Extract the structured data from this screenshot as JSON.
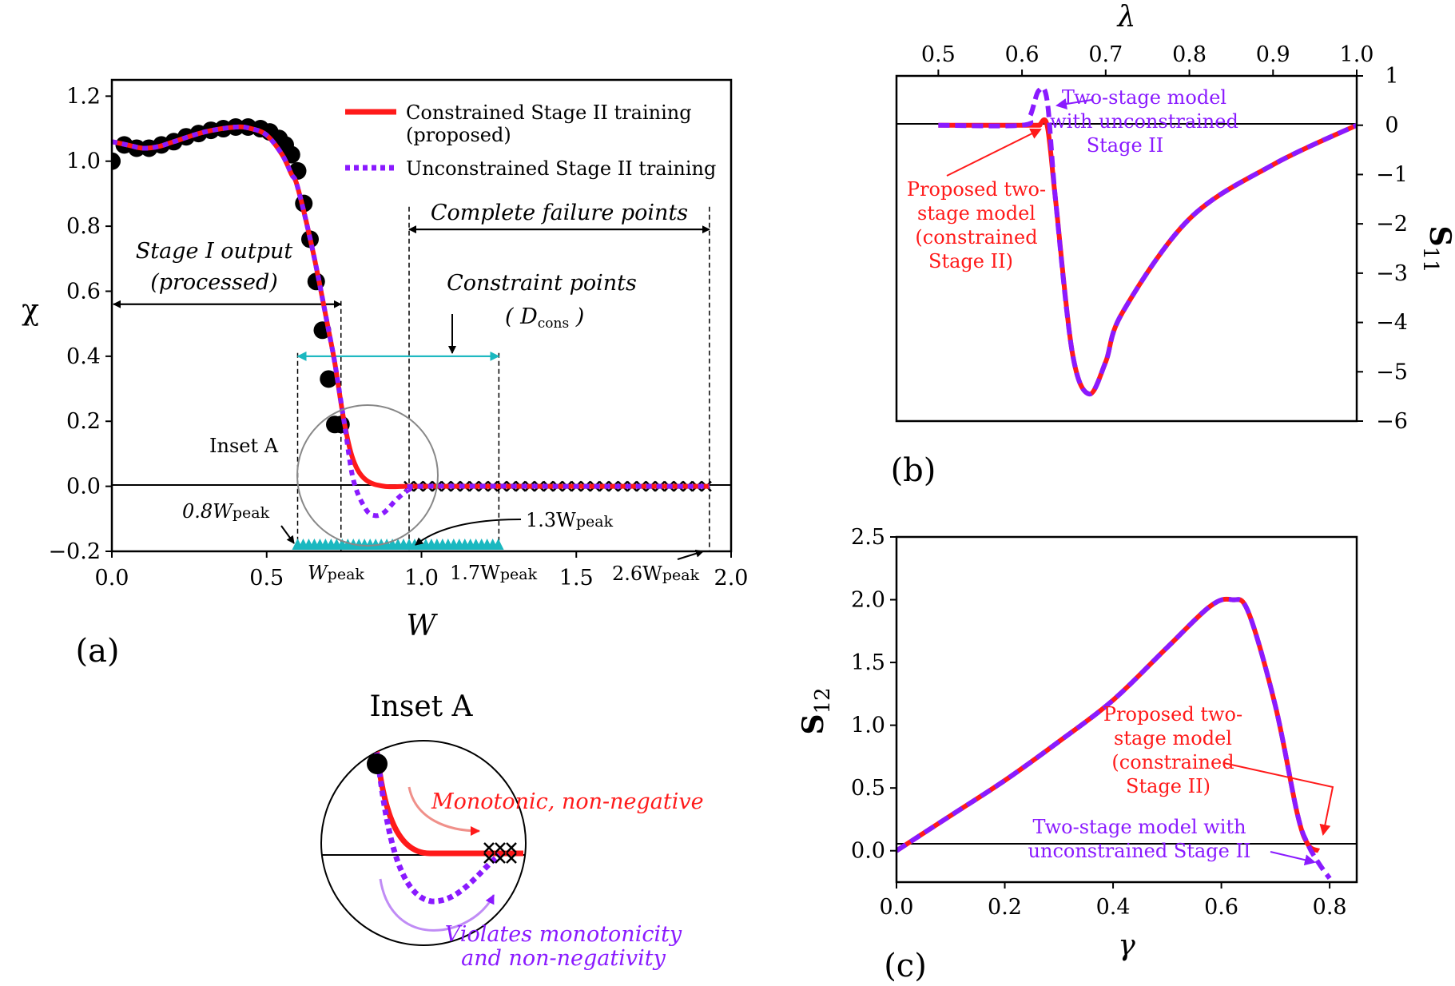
{
  "chart_data": [
    {
      "panel": "(a)",
      "type": "line",
      "xlabel": "W",
      "ylabel": "χ",
      "xlim": [
        0,
        2.0
      ],
      "ylim": [
        -0.2,
        1.25
      ],
      "xticks": [
        "0.0",
        "0.5",
        "1.0",
        "1.5",
        "2.0"
      ],
      "yticks": [
        "−0.2",
        "0.0",
        "0.2",
        "0.4",
        "0.6",
        "0.8",
        "1.0",
        "1.2"
      ],
      "legend": [
        "Constrained Stage II training",
        "(proposed)",
        "Unconstrained Stage II training"
      ],
      "series": [
        {
          "name": "Constrained Stage II training (proposed)",
          "color": "#ff1a1a",
          "x": [
            0,
            0.05,
            0.1,
            0.15,
            0.2,
            0.3,
            0.4,
            0.45,
            0.5,
            0.55,
            0.58,
            0.6,
            0.65,
            0.7,
            0.72,
            0.75,
            0.78,
            0.82,
            0.88,
            0.95,
            1.0,
            1.5,
            1.93
          ],
          "y": [
            1.06,
            1.05,
            1.04,
            1.045,
            1.06,
            1.09,
            1.105,
            1.1,
            1.08,
            1.02,
            0.96,
            0.92,
            0.72,
            0.48,
            0.38,
            0.2,
            0.08,
            0.02,
            0.0,
            0.0,
            0.0,
            0.0,
            0.0
          ]
        },
        {
          "name": "Unconstrained Stage II training",
          "color": "#8a1aff",
          "x": [
            0,
            0.05,
            0.1,
            0.15,
            0.2,
            0.3,
            0.4,
            0.45,
            0.5,
            0.55,
            0.58,
            0.6,
            0.65,
            0.7,
            0.72,
            0.75,
            0.78,
            0.82,
            0.85,
            0.88,
            0.92,
            0.96,
            1.0,
            1.5,
            1.93
          ],
          "y": [
            1.06,
            1.05,
            1.04,
            1.045,
            1.06,
            1.09,
            1.105,
            1.1,
            1.08,
            1.02,
            0.96,
            0.92,
            0.72,
            0.48,
            0.38,
            0.2,
            0.02,
            -0.07,
            -0.09,
            -0.08,
            -0.04,
            -0.01,
            0.0,
            0.0,
            0.0
          ]
        },
        {
          "name": "Stage I output (processed) points",
          "color": "#000000",
          "x": [
            0.0,
            0.04,
            0.08,
            0.12,
            0.16,
            0.2,
            0.24,
            0.28,
            0.32,
            0.36,
            0.4,
            0.44,
            0.48,
            0.51,
            0.54,
            0.56,
            0.58,
            0.6,
            0.62,
            0.64,
            0.66,
            0.68,
            0.7,
            0.72,
            0.74
          ],
          "y": [
            1.0,
            1.05,
            1.04,
            1.04,
            1.05,
            1.06,
            1.075,
            1.085,
            1.095,
            1.1,
            1.105,
            1.105,
            1.1,
            1.09,
            1.07,
            1.05,
            1.02,
            0.97,
            0.87,
            0.76,
            0.63,
            0.48,
            0.33,
            0.19,
            0.19
          ]
        }
      ],
      "annotations": {
        "stage_output": [
          "Stage I output",
          "(processed)"
        ],
        "constraint": [
          "Constraint points",
          "( D",
          "cons",
          " )"
        ],
        "failure": "Complete failure points",
        "inset_label": "Inset A",
        "w08": [
          "0.8W",
          "peak"
        ],
        "w13": [
          "1.3W",
          "peak"
        ],
        "wpeak": [
          "W",
          "peak"
        ],
        "w17": [
          "1.7W",
          "peak"
        ],
        "w26": [
          "2.6W",
          "peak"
        ],
        "markers": {
          "wpeak": 0.74,
          "w08": 0.6,
          "w13": 0.96,
          "w17": 1.25,
          "w26": 1.93
        }
      }
    },
    {
      "panel": "(b)",
      "type": "line",
      "xlabel": "λ",
      "ylabel": "S",
      "ylabel_sub": "11",
      "xlim": [
        0.45,
        1.0
      ],
      "ylim": [
        -6,
        1
      ],
      "xticks": [
        "0.5",
        "0.6",
        "0.7",
        "0.8",
        "0.9",
        "1.0"
      ],
      "yticks": [
        "1",
        "0",
        "−1",
        "−2",
        "−3",
        "−4",
        "−5",
        "−6"
      ],
      "series": [
        {
          "name": "Proposed two-stage model (constrained Stage II)",
          "color": "#ff1a1a",
          "x": [
            0.5,
            0.61,
            0.62,
            0.63,
            0.64,
            0.66,
            0.68,
            0.7,
            0.72,
            0.8,
            0.9,
            1.0
          ],
          "y": [
            0,
            0,
            0,
            0,
            -1.5,
            -4.6,
            -5.45,
            -4.8,
            -3.8,
            -1.9,
            -0.8,
            0
          ]
        },
        {
          "name": "Two-stage model with unconstrained Stage II",
          "color": "#8a1aff",
          "x": [
            0.5,
            0.6,
            0.61,
            0.62,
            0.63,
            0.64,
            0.66,
            0.68,
            0.7,
            0.72,
            0.8,
            0.9,
            1.0
          ],
          "y": [
            0,
            0,
            0.2,
            0.7,
            0.5,
            -1.5,
            -4.6,
            -5.45,
            -4.8,
            -3.8,
            -1.9,
            -0.8,
            0
          ]
        }
      ],
      "annotations": {
        "proposed": [
          "Proposed two-",
          "stage model",
          "(constrained",
          "Stage II)"
        ],
        "unconstrained": [
          "Two-stage model",
          "with unconstrained",
          "Stage II"
        ]
      }
    },
    {
      "panel": "(c)",
      "type": "line",
      "xlabel": "γ",
      "ylabel": "S",
      "ylabel_sub": "12",
      "xlim": [
        0,
        0.85
      ],
      "ylim": [
        -0.25,
        2.5
      ],
      "xticks": [
        "0.0",
        "0.2",
        "0.4",
        "0.6",
        "0.8"
      ],
      "yticks": [
        "0.0",
        "0.5",
        "1.0",
        "1.5",
        "2.0",
        "2.5"
      ],
      "series": [
        {
          "name": "Proposed two-stage model (constrained Stage II)",
          "color": "#ff1a1a",
          "x": [
            0,
            0.1,
            0.2,
            0.3,
            0.4,
            0.5,
            0.58,
            0.62,
            0.65,
            0.7,
            0.74,
            0.76,
            0.78
          ],
          "y": [
            0,
            0.28,
            0.56,
            0.87,
            1.2,
            1.62,
            1.95,
            2.0,
            1.9,
            1.15,
            0.3,
            0.05,
            0.0
          ]
        },
        {
          "name": "Two-stage model with unconstrained Stage II",
          "color": "#8a1aff",
          "x": [
            0,
            0.1,
            0.2,
            0.3,
            0.4,
            0.5,
            0.58,
            0.62,
            0.65,
            0.7,
            0.74,
            0.76,
            0.78,
            0.8
          ],
          "y": [
            0,
            0.28,
            0.56,
            0.87,
            1.2,
            1.62,
            1.95,
            2.0,
            1.9,
            1.15,
            0.3,
            0.05,
            -0.1,
            -0.22
          ]
        }
      ],
      "annotations": {
        "proposed": [
          "Proposed two-",
          "stage model",
          "(constrained",
          "Stage II)"
        ],
        "unconstrained": [
          "Two-stage model with",
          "unconstrained Stage II"
        ]
      }
    }
  ],
  "inset": {
    "title": "Inset A",
    "monotonic": "Monotonic, non-negative",
    "violates": [
      "Violates monotonicity",
      "and non-negativity"
    ]
  }
}
